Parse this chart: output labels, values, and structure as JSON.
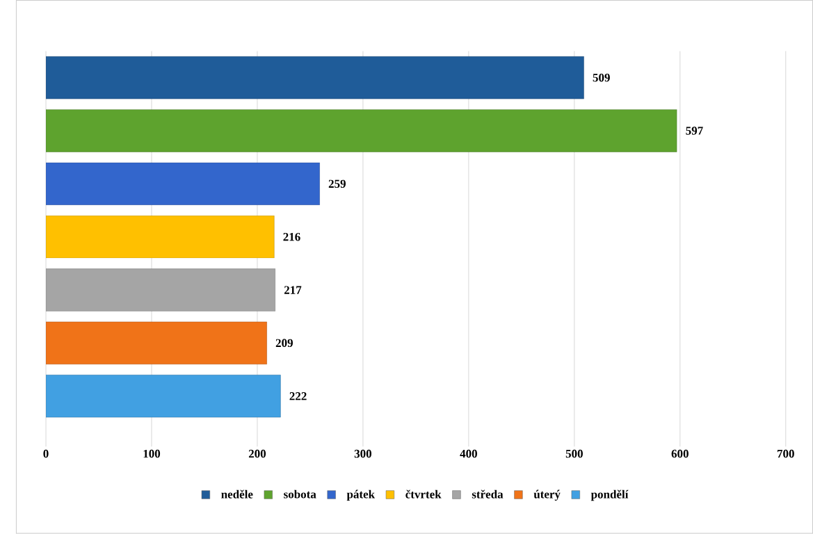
{
  "chart_data": {
    "type": "bar",
    "orientation": "horizontal",
    "categories": [
      null
    ],
    "series": [
      {
        "name": "neděle",
        "color": "#1f5c99",
        "values": [
          509
        ]
      },
      {
        "name": "sobota",
        "color": "#5ea32e",
        "values": [
          597
        ]
      },
      {
        "name": "pátek",
        "color": "#3366cc",
        "values": [
          259
        ]
      },
      {
        "name": "čtvrtek",
        "color": "#ffc000",
        "values": [
          216
        ]
      },
      {
        "name": "středa",
        "color": "#a5a5a5",
        "values": [
          217
        ]
      },
      {
        "name": "úterý",
        "color": "#f07318",
        "values": [
          209
        ]
      },
      {
        "name": "pondělí",
        "color": "#41a0e2",
        "values": [
          222
        ]
      }
    ],
    "xlim": [
      0,
      700
    ],
    "xticks": [
      0,
      100,
      200,
      300,
      400,
      500,
      600,
      700
    ],
    "grid": "x",
    "legend": "bottom",
    "data_labels": true
  }
}
